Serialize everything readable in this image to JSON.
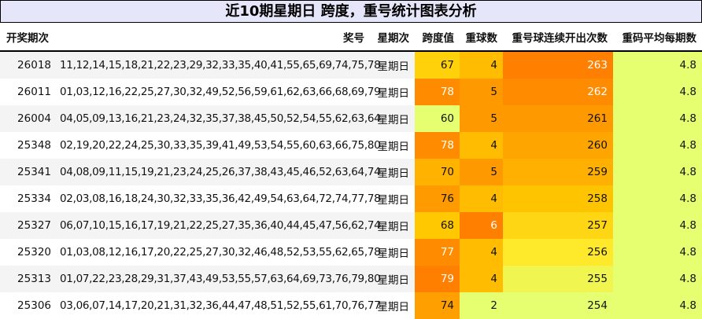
{
  "title": "近10期星期日 跨度，重号统计图表分析",
  "headers": [
    "开奖期次",
    "奖号",
    "星期次",
    "跨度值",
    "重球数",
    "重号球连续开出次数",
    "重码平均每期数"
  ],
  "rows": [
    {
      "issue": "26018",
      "numbers": "11,12,14,15,18,21,22,23,29,32,33,35,40,41,55,65,69,74,75,78",
      "weekday": "星期日",
      "span": "67",
      "repeat": "4",
      "consecutive": "263",
      "avg": "4.8",
      "span_color": "#ffd10a",
      "repeat_color": "#ffbc00",
      "consecutive_color": "#ff8000"
    },
    {
      "issue": "26011",
      "numbers": "01,03,12,16,22,25,27,30,32,49,52,56,59,61,62,63,66,68,69,79",
      "weekday": "星期日",
      "span": "78",
      "repeat": "5",
      "consecutive": "262",
      "avg": "4.8",
      "span_color": "#ff8c00",
      "repeat_color": "#ff9900",
      "consecutive_color": "#ff8c00"
    },
    {
      "issue": "26004",
      "numbers": "04,05,09,13,16,21,23,24,32,35,37,38,45,50,52,54,55,62,63,64",
      "weekday": "星期日",
      "span": "60",
      "repeat": "5",
      "consecutive": "261",
      "avg": "4.8",
      "span_color": "#e5ff70",
      "repeat_color": "#ff9900",
      "consecutive_color": "#ff9900"
    },
    {
      "issue": "25348",
      "numbers": "02,19,20,22,24,25,30,33,35,39,41,49,53,54,55,60,63,66,75,80",
      "weekday": "星期日",
      "span": "78",
      "repeat": "4",
      "consecutive": "260",
      "avg": "4.8",
      "span_color": "#ff8c00",
      "repeat_color": "#ffbc00",
      "consecutive_color": "#ffa500"
    },
    {
      "issue": "25341",
      "numbers": "04,08,09,11,15,19,21,23,24,25,26,37,38,43,45,46,52,63,64,74",
      "weekday": "星期日",
      "span": "70",
      "repeat": "5",
      "consecutive": "259",
      "avg": "4.8",
      "span_color": "#ffb300",
      "repeat_color": "#ff9900",
      "consecutive_color": "#ffb000"
    },
    {
      "issue": "25334",
      "numbers": "02,03,08,16,18,24,30,32,33,35,36,42,49,54,63,64,72,74,77,78",
      "weekday": "星期日",
      "span": "76",
      "repeat": "4",
      "consecutive": "258",
      "avg": "4.8",
      "span_color": "#ff9a00",
      "repeat_color": "#ffbc00",
      "consecutive_color": "#ffc400"
    },
    {
      "issue": "25327",
      "numbers": "06,07,10,15,16,17,19,21,22,25,27,35,36,40,44,45,47,56,62,74",
      "weekday": "星期日",
      "span": "68",
      "repeat": "6",
      "consecutive": "257",
      "avg": "4.8",
      "span_color": "#ffc800",
      "repeat_color": "#ff8000",
      "consecutive_color": "#ffd614"
    },
    {
      "issue": "25320",
      "numbers": "01,03,08,12,16,17,20,22,25,27,30,32,46,48,52,53,55,62,65,78",
      "weekday": "星期日",
      "span": "77",
      "repeat": "4",
      "consecutive": "256",
      "avg": "4.8",
      "span_color": "#ff8c00",
      "repeat_color": "#ffbc00",
      "consecutive_color": "#ffe92a"
    },
    {
      "issue": "25313",
      "numbers": "01,07,22,23,28,29,31,37,43,49,53,55,57,63,64,69,73,76,79,80",
      "weekday": "星期日",
      "span": "79",
      "repeat": "4",
      "consecutive": "255",
      "avg": "4.8",
      "span_color": "#ff8000",
      "repeat_color": "#ffbc00",
      "consecutive_color": "#f0f550"
    },
    {
      "issue": "25306",
      "numbers": "03,06,07,14,17,20,21,31,32,36,44,47,48,51,52,55,61,70,76,77",
      "weekday": "星期日",
      "span": "74",
      "repeat": "2",
      "consecutive": "254",
      "avg": "4.8",
      "span_color": "#ffa000",
      "repeat_color": "#e5ff70",
      "consecutive_color": "#e5ff70"
    }
  ],
  "avg_color": "#e5ff70",
  "white_text_cells": {
    "span": [
      "78",
      "77",
      "79"
    ],
    "repeat": [
      "6"
    ],
    "consecutive": [
      "263",
      "262"
    ]
  }
}
